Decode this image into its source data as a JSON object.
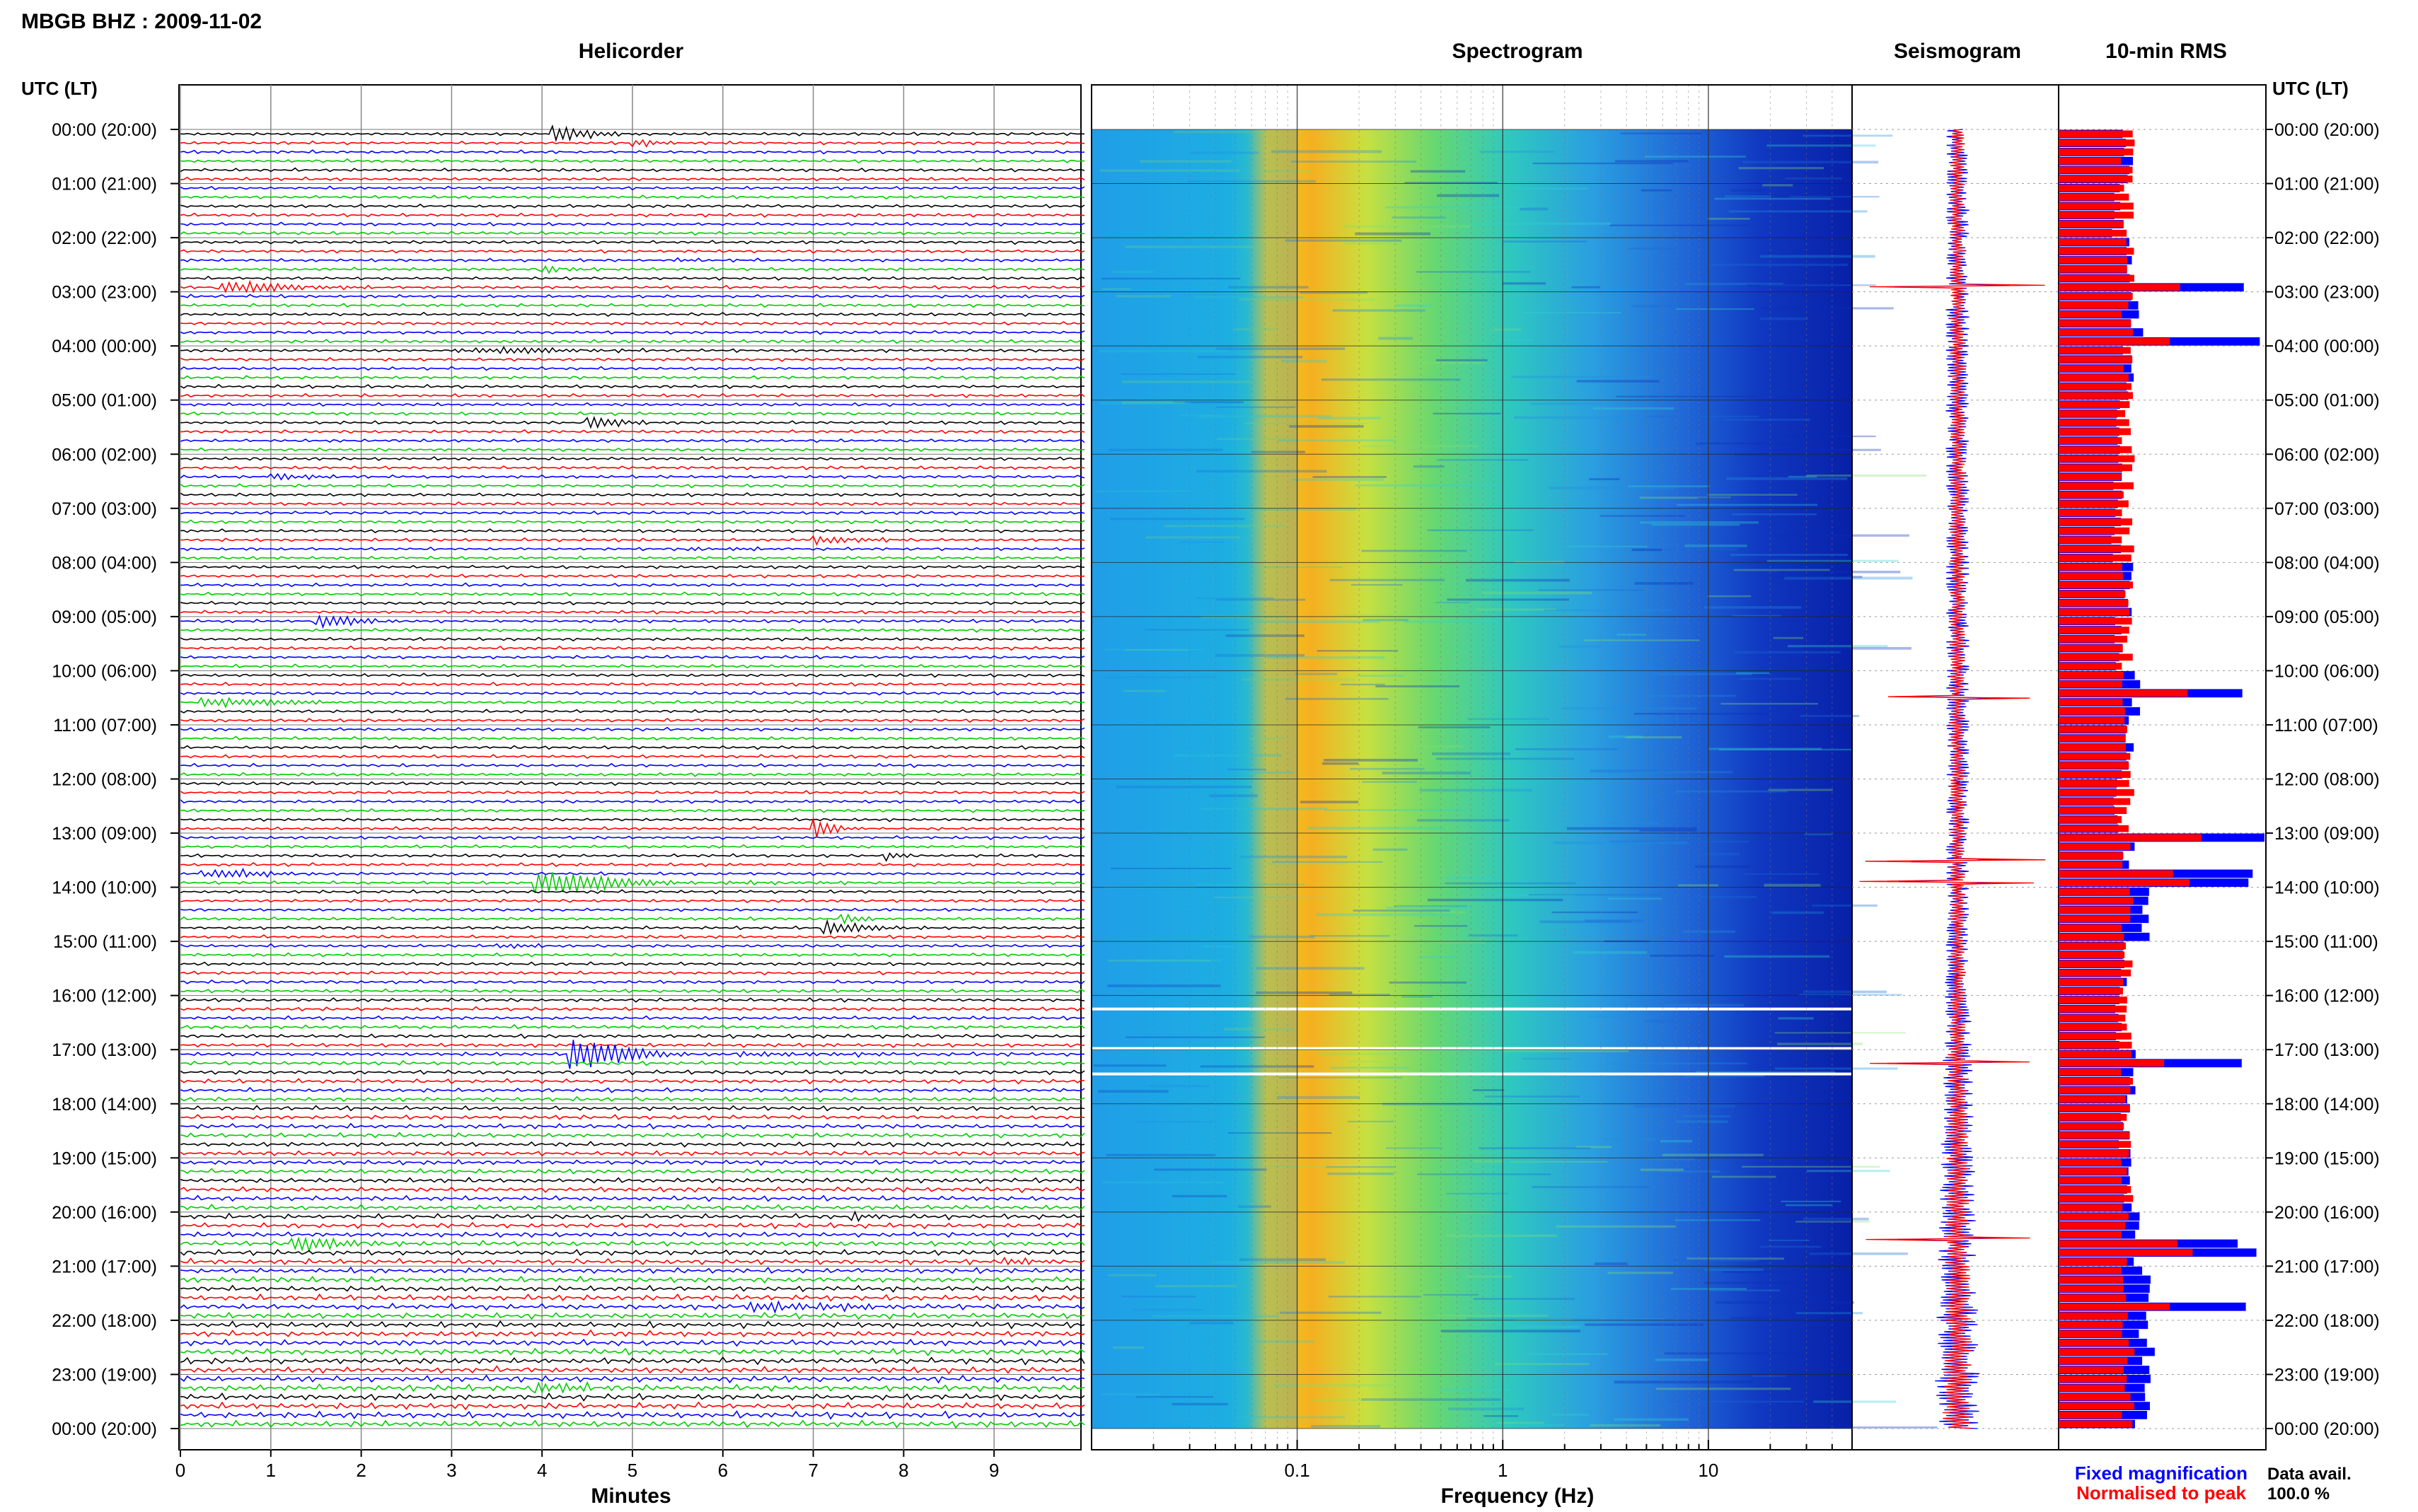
{
  "header": {
    "station_title": "MBGB BHZ : 2009-11-02",
    "panel_titles": {
      "helicorder": "Helicorder",
      "spectrogram": "Spectrogram",
      "seismogram": "Seismogram",
      "rms": "10-min RMS"
    },
    "time_axis_title": "UTC (LT)"
  },
  "time_labels": [
    "00:00 (20:00)",
    "01:00 (21:00)",
    "02:00 (22:00)",
    "03:00 (23:00)",
    "04:00 (00:00)",
    "05:00 (01:00)",
    "06:00 (02:00)",
    "07:00 (03:00)",
    "08:00 (04:00)",
    "09:00 (05:00)",
    "10:00 (06:00)",
    "11:00 (07:00)",
    "12:00 (08:00)",
    "13:00 (09:00)",
    "14:00 (10:00)",
    "15:00 (11:00)",
    "16:00 (12:00)",
    "17:00 (13:00)",
    "18:00 (14:00)",
    "19:00 (15:00)",
    "20:00 (16:00)",
    "21:00 (17:00)",
    "22:00 (18:00)",
    "23:00 (19:00)",
    "00:00 (20:00)"
  ],
  "footer": {
    "legend_fixed": "Fixed magnification",
    "legend_normalised": "Normalised to peak",
    "data_avail_label": "Data avail.",
    "data_avail_value": "100.0 %"
  },
  "colors": {
    "trace_cycle": [
      "#000000",
      "#ff0000",
      "#0000ff",
      "#00cc00"
    ],
    "fixed": "#0000ff",
    "normalised": "#ff0000"
  },
  "chart_data": [
    {
      "type": "line",
      "panel": "Helicorder",
      "xlabel": "Minutes",
      "x_ticks": [
        "0",
        "1",
        "2",
        "3",
        "4",
        "5",
        "6",
        "7",
        "8",
        "9"
      ],
      "xlim": [
        0,
        10
      ],
      "rows": 144,
      "row_minutes": 10,
      "events": [
        {
          "hour": 0.05,
          "minute": 4.1,
          "color": "#000000",
          "amp": 2.2,
          "dur": 1.2
        },
        {
          "hour": 0.1,
          "minute": 5.0,
          "color": "#ff0000",
          "amp": 1.3,
          "dur": 1.2
        },
        {
          "hour": 2.3,
          "minute": 5.5,
          "color": "#0000ff",
          "amp": 1.6,
          "dur": 1.0
        },
        {
          "hour": 2.5,
          "minute": 4.0,
          "color": "#00cc00",
          "amp": 1.2,
          "dur": 0.8
        },
        {
          "hour": 2.8,
          "minute": 0.4,
          "color": "#ff0000",
          "amp": 2.6,
          "dur": 1.8
        },
        {
          "hour": 2.95,
          "minute": 8.6,
          "color": "#0000ff",
          "amp": 1.8,
          "dur": 1.0
        },
        {
          "hour": 3.95,
          "minute": 2.8,
          "color": "#000000",
          "amp": 2.6,
          "dur": 2.4
        },
        {
          "hour": 5.3,
          "minute": 4.5,
          "color": "#000000",
          "amp": 1.6,
          "dur": 1.4
        },
        {
          "hour": 6.3,
          "minute": 1.0,
          "color": "#0000ff",
          "amp": 1.2,
          "dur": 1.0
        },
        {
          "hour": 7.7,
          "minute": 5.6,
          "color": "#0000ff",
          "amp": 2.2,
          "dur": 1.2
        },
        {
          "hour": 7.55,
          "minute": 7.0,
          "color": "#ff0000",
          "amp": 1.2,
          "dur": 1.4
        },
        {
          "hour": 9.0,
          "minute": 1.5,
          "color": "#0000ff",
          "amp": 1.5,
          "dur": 2.2
        },
        {
          "hour": 10.45,
          "minute": 0.2,
          "color": "#00cc00",
          "amp": 3.2,
          "dur": 1.6
        },
        {
          "hour": 12.85,
          "minute": 7.0,
          "color": "#ff0000",
          "amp": 2.6,
          "dur": 0.7
        },
        {
          "hour": 13.35,
          "minute": 7.8,
          "color": "#000000",
          "amp": 1.4,
          "dur": 0.6
        },
        {
          "hour": 13.6,
          "minute": 0.2,
          "color": "#ff0000",
          "amp": 3.0,
          "dur": 1.4
        },
        {
          "hour": 13.9,
          "minute": 3.9,
          "color": "#00cc00",
          "amp": 3.2,
          "dur": 3.5
        },
        {
          "hour": 14.6,
          "minute": 7.1,
          "color": "#000000",
          "amp": 1.6,
          "dur": 2.0
        },
        {
          "hour": 14.5,
          "minute": 7.3,
          "color": "#00cc00",
          "amp": 1.2,
          "dur": 0.8
        },
        {
          "hour": 15.05,
          "minute": 3.5,
          "color": "#00cc00",
          "amp": 1.0,
          "dur": 0.8
        },
        {
          "hour": 17.05,
          "minute": 4.3,
          "color": "#00cc00",
          "amp": 3.6,
          "dur": 3.5
        },
        {
          "hour": 18.65,
          "minute": 8.4,
          "color": "#000000",
          "amp": 1.4,
          "dur": 0.8
        },
        {
          "hour": 20.0,
          "minute": 7.4,
          "color": "#00cc00",
          "amp": 1.2,
          "dur": 0.8
        },
        {
          "hour": 20.55,
          "minute": 1.2,
          "color": "#00cc00",
          "amp": 1.6,
          "dur": 3.0
        },
        {
          "hour": 20.8,
          "minute": 9.1,
          "color": "#ff0000",
          "amp": 1.8,
          "dur": 0.8
        },
        {
          "hour": 21.7,
          "minute": 6.2,
          "color": "#0000ff",
          "amp": 1.8,
          "dur": 3.0
        },
        {
          "hour": 23.1,
          "minute": 3.9,
          "color": "#00cc00",
          "amp": 1.4,
          "dur": 1.6
        }
      ]
    },
    {
      "type": "heatmap",
      "panel": "Spectrogram",
      "xlabel": "Frequency (Hz)",
      "x_scale": "log",
      "xlim": [
        0.01,
        50
      ],
      "x_tick_labels": [
        "0.1",
        "1",
        "10"
      ],
      "x_tick_values": [
        0.1,
        1,
        10
      ],
      "microseism_peak_hz": 0.2,
      "colormap": "jet"
    },
    {
      "type": "line",
      "panel": "Seismogram",
      "spike_hours": [
        2.9,
        10.5,
        13.5,
        13.9,
        17.25,
        20.5
      ],
      "series": [
        {
          "name": "Fixed magnification",
          "color": "#0000ff"
        },
        {
          "name": "Normalised to peak",
          "color": "#ff0000"
        }
      ]
    },
    {
      "type": "bar",
      "panel": "10-min RMS",
      "series": [
        {
          "name": "Fixed magnification",
          "color": "#0000ff"
        },
        {
          "name": "Normalised to peak",
          "color": "#ff0000"
        }
      ],
      "hourly_rms": [
        0.6,
        0.52,
        0.62,
        0.7,
        0.62,
        0.55,
        0.52,
        0.5,
        0.6,
        0.52,
        0.66,
        0.6,
        0.52,
        0.62,
        0.74,
        0.58,
        0.55,
        0.62,
        0.58,
        0.62,
        0.7,
        0.78,
        0.78,
        0.74
      ],
      "peak_hours": [
        2.9,
        3.9,
        10.4,
        13.0,
        13.6,
        13.9,
        17.2,
        20.5,
        20.6,
        21.6
      ]
    }
  ]
}
